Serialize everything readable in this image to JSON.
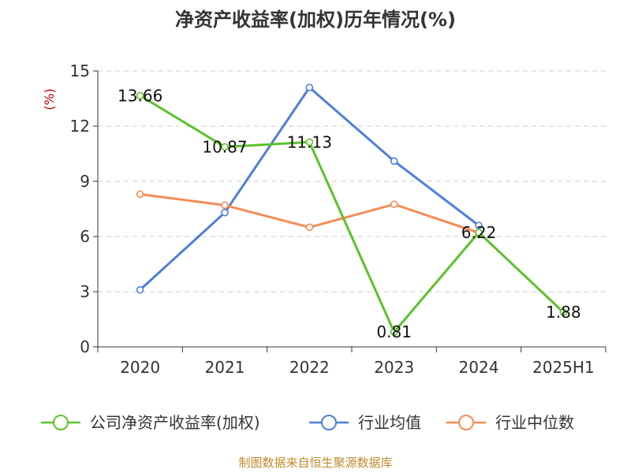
{
  "chart_data": {
    "type": "line",
    "title": "净资产收益率(加权)历年情况(%)",
    "ylabel": "(%)",
    "categories": [
      "2020",
      "2021",
      "2022",
      "2023",
      "2024",
      "2025H1"
    ],
    "ylim": [
      0,
      15
    ],
    "yticks": [
      0,
      3,
      6,
      9,
      12,
      15
    ],
    "grid": true,
    "legend_position": "bottom",
    "series": [
      {
        "name": "公司净资产收益率(加权)",
        "color": "#5cc22a",
        "values": [
          13.66,
          10.87,
          11.13,
          0.81,
          6.22,
          1.88
        ],
        "labels": [
          "13.66",
          "10.87",
          "11.13",
          "0.81",
          "6.22",
          "1.88"
        ]
      },
      {
        "name": "行业均值",
        "color": "#4f7fd8",
        "values": [
          3.1,
          7.3,
          14.1,
          10.1,
          6.6,
          null
        ]
      },
      {
        "name": "行业中位数",
        "color": "#f58c55",
        "values": [
          8.3,
          7.7,
          6.5,
          7.75,
          6.2,
          null
        ]
      }
    ]
  },
  "source": "制图数据来自恒生聚源数据库"
}
